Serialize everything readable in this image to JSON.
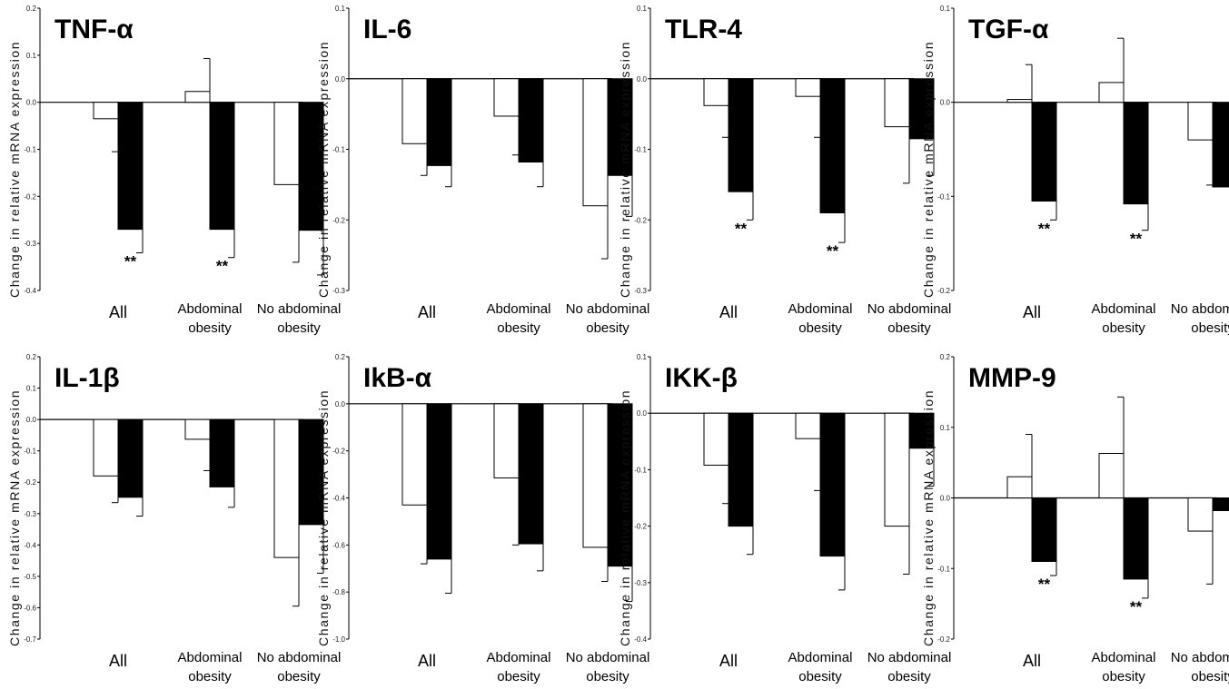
{
  "figure": {
    "series_fill": {
      "Baseline": "#ffffff",
      "Follow-up": "#000000"
    }
  },
  "chart_data": [
    {
      "type": "bar",
      "title": "TNF-α",
      "ylabel": "Change in relative mRNA expression",
      "categories": [
        "All",
        "Abdominal obesity",
        "No abdominal obesity"
      ],
      "ylim": [
        -0.4,
        0.2
      ],
      "yticks": [
        -0.4,
        -0.3,
        -0.2,
        -0.1,
        0.0,
        0.1,
        0.2
      ],
      "series": [
        {
          "values": [
            -0.035,
            0.023,
            -0.175
          ],
          "errors": [
            0.07,
            0.07,
            0.165
          ],
          "fill": "#ffffff"
        },
        {
          "values": [
            -0.27,
            -0.27,
            -0.272
          ],
          "errors": [
            0.05,
            0.06,
            0.095
          ],
          "fill": "#000000"
        }
      ],
      "significance": [
        [
          "",
          "**"
        ],
        [
          "",
          "**"
        ],
        [
          "",
          ""
        ]
      ]
    },
    {
      "type": "bar",
      "title": "IL-6",
      "ylabel": "Change in relative mRNA expression",
      "categories": [
        "All",
        "Abdominal obesity",
        "No abdominal obesity"
      ],
      "ylim": [
        -0.3,
        0.1
      ],
      "yticks": [
        -0.3,
        -0.2,
        -0.1,
        0.0,
        0.1
      ],
      "series": [
        {
          "values": [
            -0.092,
            -0.053,
            -0.18
          ],
          "errors": [
            0.045,
            0.055,
            0.075
          ],
          "fill": "#ffffff"
        },
        {
          "values": [
            -0.123,
            -0.118,
            -0.137
          ],
          "errors": [
            0.03,
            0.035,
            0.058
          ],
          "fill": "#000000"
        }
      ],
      "significance": [
        [
          "",
          ""
        ],
        [
          "",
          ""
        ],
        [
          "",
          ""
        ]
      ]
    },
    {
      "type": "bar",
      "title": "TLR-4",
      "ylabel": "Change in relative mRNA expression",
      "categories": [
        "All",
        "Abdominal obesity",
        "No abdominal obesity"
      ],
      "ylim": [
        -0.3,
        0.1
      ],
      "yticks": [
        -0.3,
        -0.2,
        -0.1,
        0.0,
        0.1
      ],
      "series": [
        {
          "values": [
            -0.038,
            -0.025,
            -0.068
          ],
          "errors": [
            0.045,
            0.058,
            0.08
          ],
          "fill": "#ffffff"
        },
        {
          "values": [
            -0.16,
            -0.19,
            -0.085
          ],
          "errors": [
            0.04,
            0.042,
            0.052
          ],
          "fill": "#000000"
        }
      ],
      "significance": [
        [
          "",
          "**"
        ],
        [
          "",
          "**"
        ],
        [
          "",
          ""
        ]
      ]
    },
    {
      "type": "bar",
      "title": "TGF-α",
      "ylabel": "Change in relative mRNA expression",
      "categories": [
        "All",
        "Abdominal obesity",
        "No abdominal obesity"
      ],
      "ylim": [
        -0.2,
        0.1
      ],
      "yticks": [
        -0.2,
        -0.1,
        0.0,
        0.1
      ],
      "series": [
        {
          "values": [
            0.003,
            0.021,
            -0.04
          ],
          "errors": [
            0.037,
            0.047,
            0.048
          ],
          "fill": "#ffffff"
        },
        {
          "values": [
            -0.105,
            -0.108,
            -0.09
          ],
          "errors": [
            0.02,
            0.028,
            0.042
          ],
          "fill": "#000000"
        }
      ],
      "significance": [
        [
          "",
          "**"
        ],
        [
          "",
          "**"
        ],
        [
          "",
          ""
        ]
      ]
    },
    {
      "type": "bar",
      "title": "IL-1β",
      "ylabel": "Change in relative mRNA expression",
      "categories": [
        "All",
        "Abdominal obesity",
        "No abdominal obesity"
      ],
      "ylim": [
        -0.7,
        0.2
      ],
      "yticks": [
        -0.7,
        -0.6,
        -0.5,
        -0.4,
        -0.3,
        -0.2,
        -0.1,
        0.0,
        0.1,
        0.2
      ],
      "series": [
        {
          "values": [
            -0.18,
            -0.063,
            -0.44
          ],
          "errors": [
            0.085,
            0.1,
            0.155
          ],
          "fill": "#ffffff"
        },
        {
          "values": [
            -0.248,
            -0.215,
            -0.335
          ],
          "errors": [
            0.06,
            0.065,
            0.155
          ],
          "fill": "#000000"
        }
      ],
      "significance": [
        [
          "",
          ""
        ],
        [
          "",
          ""
        ],
        [
          "",
          ""
        ]
      ]
    },
    {
      "type": "bar",
      "title": "IkB-α",
      "ylabel": "Change in relative mRNA expression",
      "categories": [
        "All",
        "Abdominal obesity",
        "No abdominal obesity"
      ],
      "ylim": [
        -1.0,
        0.2
      ],
      "yticks": [
        -1.0,
        -0.8,
        -0.6,
        -0.4,
        -0.2,
        0.0,
        0.2
      ],
      "series": [
        {
          "values": [
            -0.43,
            -0.315,
            -0.61
          ],
          "errors": [
            0.25,
            0.285,
            0.145
          ],
          "fill": "#ffffff"
        },
        {
          "values": [
            -0.66,
            -0.595,
            -0.69
          ],
          "errors": [
            0.145,
            0.115,
            0.15
          ],
          "fill": "#000000"
        }
      ],
      "significance": [
        [
          "",
          ""
        ],
        [
          "",
          ""
        ],
        [
          "",
          ""
        ]
      ]
    },
    {
      "type": "bar",
      "title": "IKK-β",
      "ylabel": "Change in relative mRNA expression",
      "categories": [
        "All",
        "Abdominal obesity",
        "No abdominal obesity"
      ],
      "ylim": [
        -0.4,
        0.1
      ],
      "yticks": [
        -0.4,
        -0.3,
        -0.2,
        -0.1,
        0.0,
        0.1
      ],
      "series": [
        {
          "values": [
            -0.092,
            -0.045,
            -0.2
          ],
          "errors": [
            0.068,
            0.092,
            0.085
          ],
          "fill": "#ffffff"
        },
        {
          "values": [
            -0.2,
            -0.253,
            -0.062
          ],
          "errors": [
            0.05,
            0.06,
            0.067
          ],
          "fill": "#000000"
        }
      ],
      "significance": [
        [
          "",
          ""
        ],
        [
          "",
          ""
        ],
        [
          "",
          ""
        ]
      ]
    },
    {
      "type": "bar",
      "title": "MMP-9",
      "ylabel": "Change in relative mRNA expression",
      "categories": [
        "All",
        "Abdominal obesity",
        "No abdominal obesity"
      ],
      "ylim": [
        -0.2,
        0.2
      ],
      "yticks": [
        -0.2,
        -0.1,
        0.0,
        0.1,
        0.2
      ],
      "series": [
        {
          "values": [
            0.03,
            0.063,
            -0.047
          ],
          "errors": [
            0.06,
            0.08,
            0.075
          ],
          "fill": "#ffffff"
        },
        {
          "values": [
            -0.09,
            -0.115,
            -0.018
          ],
          "errors": [
            0.02,
            0.027,
            0.04
          ],
          "fill": "#000000"
        }
      ],
      "significance": [
        [
          "",
          "**"
        ],
        [
          "",
          "**"
        ],
        [
          "",
          ""
        ]
      ]
    }
  ]
}
